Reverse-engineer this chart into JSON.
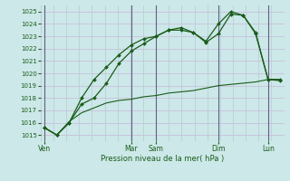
{
  "xlabel": "Pression niveau de la mer( hPa )",
  "ylim": [
    1014.5,
    1025.5
  ],
  "yticks": [
    1015,
    1016,
    1017,
    1018,
    1019,
    1020,
    1021,
    1022,
    1023,
    1024,
    1025
  ],
  "background_color": "#cce8e8",
  "grid_color_h": "#c8b8d8",
  "grid_color_v": "#b8c8d8",
  "line_color": "#1a5c1a",
  "tick_label_color": "#1a5c1a",
  "x_day_labels": [
    "Ven",
    "Mar",
    "Sam",
    "Dim",
    "Lun"
  ],
  "x_day_positions": [
    0,
    7,
    9,
    14,
    18
  ],
  "xlim": [
    -0.3,
    19.3
  ],
  "n_points": 20,
  "series1_x": [
    0,
    1,
    2,
    3,
    4,
    5,
    6,
    7,
    8,
    9,
    10,
    11,
    12,
    13,
    14,
    15,
    16,
    17,
    18,
    19
  ],
  "series1": [
    1015.6,
    1015.0,
    1016.0,
    1018.0,
    1019.5,
    1020.5,
    1021.5,
    1022.3,
    1022.8,
    1023.0,
    1023.5,
    1023.7,
    1023.3,
    1022.5,
    1023.2,
    1024.8,
    1024.7,
    1023.3,
    1019.5,
    1019.5
  ],
  "series2_x": [
    0,
    1,
    2,
    3,
    4,
    5,
    6,
    7,
    8,
    9,
    10,
    11,
    12,
    13,
    14,
    15,
    16,
    17,
    18,
    19
  ],
  "series2": [
    1015.6,
    1015.0,
    1016.0,
    1017.5,
    1018.0,
    1019.2,
    1020.8,
    1021.8,
    1022.4,
    1023.0,
    1023.5,
    1023.5,
    1023.3,
    1022.6,
    1024.0,
    1025.0,
    1024.7,
    1023.2,
    1019.5,
    1019.4
  ],
  "series3_x": [
    0,
    1,
    2,
    3,
    4,
    5,
    6,
    7,
    8,
    9,
    10,
    11,
    12,
    13,
    14,
    15,
    16,
    17,
    18,
    19
  ],
  "series3": [
    1015.6,
    1015.0,
    1016.1,
    1016.8,
    1017.2,
    1017.6,
    1017.8,
    1017.9,
    1018.1,
    1018.2,
    1018.4,
    1018.5,
    1018.6,
    1018.8,
    1019.0,
    1019.1,
    1019.2,
    1019.3,
    1019.5,
    1019.5
  ]
}
